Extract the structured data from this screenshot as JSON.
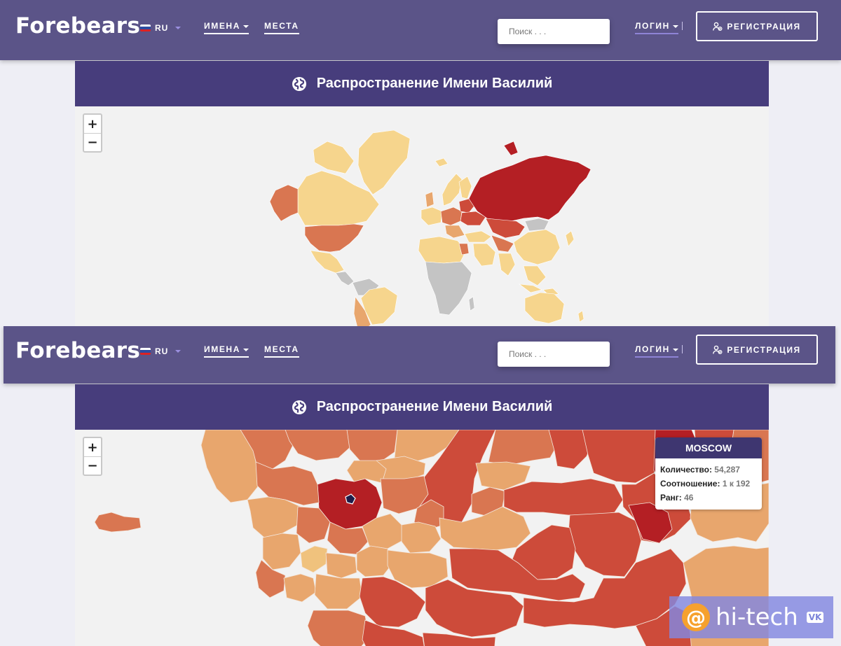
{
  "header": {
    "logo": "Forebears",
    "lang": "RU",
    "nav_names": "ИМЕНА",
    "nav_places": "МЕСТА",
    "search_placeholder": "Поиск . . .",
    "login": "ЛОГИН",
    "register": "РЕГИСТРАЦИЯ"
  },
  "panel": {
    "title": "Распространение Имени Василий"
  },
  "zoom": {
    "in": "+",
    "out": "−"
  },
  "tooltip": {
    "region": "MOSCOW",
    "count_label": "Количество",
    "count_value": "54,287",
    "ratio_label": "Соотношение",
    "ratio_value": "1 к 192",
    "rank_label": "Ранг",
    "rank_value": "46"
  },
  "colors": {
    "header_bg": "#5b5488",
    "panel_head_bg": "#473d7c",
    "map_bg": "#f2f2f2",
    "very_high": "#b41f24",
    "high": "#cd4b3a",
    "medium": "#d97651",
    "low": "#e8a66d",
    "very_low": "#f6d58d",
    "no_data": "#c4c4c4"
  },
  "watermark": {
    "text": "hi-tech",
    "badge": "VK"
  }
}
